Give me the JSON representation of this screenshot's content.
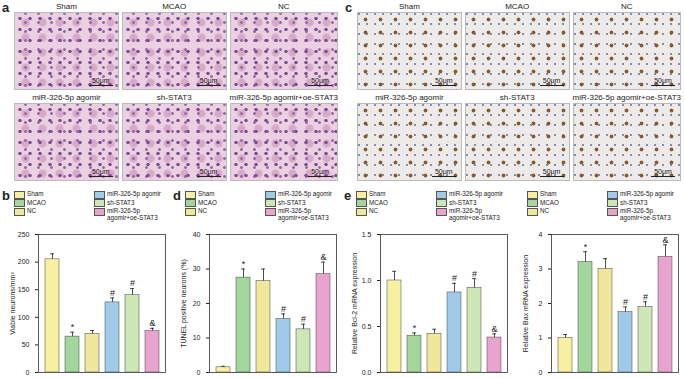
{
  "image_panels": [
    {
      "label": "a",
      "images": [
        "Sham",
        "MCAO",
        "NC",
        "miR-326-5p agomir",
        "sh-STAT3",
        "miR-326-5p agomir+oe-STAT3"
      ],
      "scale_bar": "50μm"
    },
    {
      "label": "c",
      "images": [
        "Sham",
        "MCAO",
        "NC",
        "miR-326-5p agomir",
        "sh-STAT3",
        "miR-326-5p agomir+oe-STAT3"
      ],
      "scale_bar": "50μm"
    }
  ],
  "chart_data": [
    {
      "type": "bar",
      "panel_label": "b",
      "ylabel": "Viable neurons/mm²",
      "categories": [
        "Sham",
        "MCAO",
        "NC",
        "miR-326-5p agomir",
        "sh-STAT3",
        "miR-326-5p agomir+oe-STAT3"
      ],
      "values": [
        205,
        65,
        70,
        127,
        140,
        75
      ],
      "errors": [
        10,
        8,
        6,
        8,
        12,
        5
      ],
      "annotations": [
        null,
        "*",
        null,
        "#",
        "#",
        "&"
      ],
      "colors": [
        "#f7f0a0",
        "#a3d69c",
        "#f1e79a",
        "#9fcbe8",
        "#cde8b6",
        "#e9a3cf"
      ],
      "ylim": [
        0,
        250
      ],
      "yticks": [
        0,
        50,
        100,
        150,
        200,
        250
      ],
      "legend": "top",
      "tick_labels": "y"
    },
    {
      "type": "bar",
      "panel_label": "d",
      "ylabel": "TUNEL positive neurons (%)",
      "categories": [
        "Sham",
        "MCAO",
        "NC",
        "miR-326-5p agomir",
        "sh-STAT3",
        "miR-326-5p agomir+oe-STAT3"
      ],
      "values": [
        1.5,
        27.5,
        26.5,
        15.5,
        12.5,
        28.5
      ],
      "errors": [
        0.3,
        2.5,
        3.5,
        1.5,
        1.5,
        3.5
      ],
      "annotations": [
        null,
        "*",
        null,
        "#",
        "#",
        "&"
      ],
      "colors": [
        "#f7f0a0",
        "#a3d69c",
        "#f1e79a",
        "#9fcbe8",
        "#cde8b6",
        "#e9a3cf"
      ],
      "ylim": [
        0,
        40
      ],
      "yticks": [
        0,
        10,
        20,
        30,
        40
      ],
      "legend": "top",
      "tick_labels": "y"
    },
    {
      "type": "bar",
      "panel_label": "e",
      "ylabel": "Relative Bcl-2 mRNA expression",
      "categories": [
        "Sham",
        "MCAO",
        "NC",
        "miR-326-5p agomir",
        "sh-STAT3",
        "miR-326-5p agomir+oe-STAT3"
      ],
      "values": [
        1.0,
        0.4,
        0.42,
        0.87,
        0.92,
        0.38
      ],
      "errors": [
        0.1,
        0.03,
        0.05,
        0.1,
        0.1,
        0.04
      ],
      "annotations": [
        null,
        "*",
        null,
        "#",
        "#",
        "&"
      ],
      "colors": [
        "#f7f0a0",
        "#a3d69c",
        "#f1e79a",
        "#9fcbe8",
        "#cde8b6",
        "#e9a3cf"
      ],
      "ylim": [
        0,
        1.5
      ],
      "yticks": [
        {
          "value": 0,
          "label": "0.0"
        },
        {
          "value": 0.5,
          "label": "0.5"
        },
        {
          "value": 1,
          "label": "1.0"
        },
        {
          "value": 1.5,
          "label": "1.5"
        }
      ],
      "legend": "top",
      "tick_labels": "y"
    },
    {
      "type": "bar",
      "ylabel": "Relative Bax mRNA expression",
      "categories": [
        "Sham",
        "MCAO",
        "NC",
        "miR-326-5p agomir",
        "sh-STAT3",
        "miR-326-5p agomir+oe-STAT3"
      ],
      "values": [
        1.0,
        3.2,
        3.0,
        1.75,
        1.9,
        3.35
      ],
      "errors": [
        0.1,
        0.3,
        0.3,
        0.15,
        0.15,
        0.35
      ],
      "annotations": [
        null,
        "*",
        null,
        "#",
        "#",
        "&"
      ],
      "colors": [
        "#f7f0a0",
        "#a3d69c",
        "#f1e79a",
        "#9fcbe8",
        "#cde8b6",
        "#e9a3cf"
      ],
      "ylim": [
        0,
        4
      ],
      "yticks": [
        0,
        1,
        2,
        3,
        4
      ],
      "legend": "top",
      "tick_labels": "y"
    }
  ]
}
